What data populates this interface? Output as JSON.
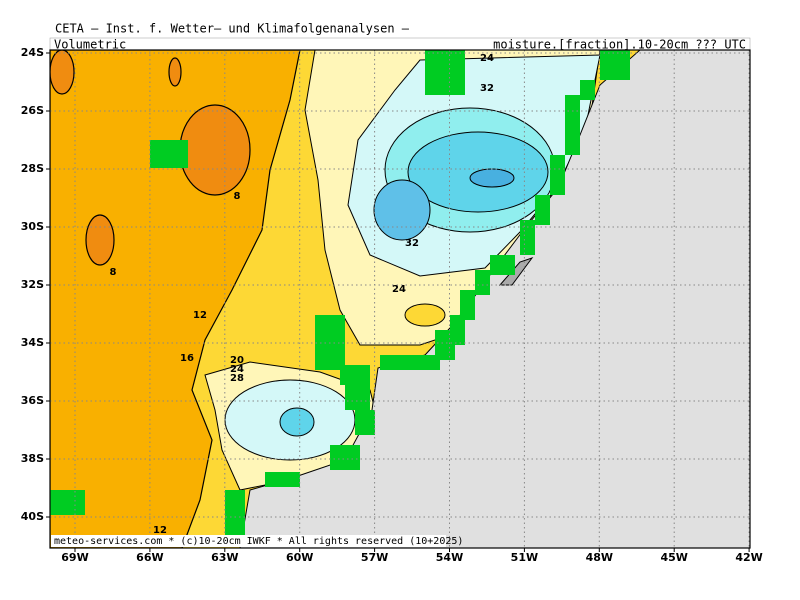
{
  "header": {
    "title": "CETA — Inst. f. Wetter— und Klimafolgenanalysen —",
    "left_label": "Volumetric",
    "right_label": "moisture.[fraction].10-20cm ??? UTC"
  },
  "map": {
    "lat_labels": [
      "24S",
      "26S",
      "28S",
      "30S",
      "32S",
      "34S",
      "36S",
      "38S",
      "40S"
    ],
    "lon_labels": [
      "69W",
      "66W",
      "63W",
      "60W",
      "57W",
      "54W",
      "51W",
      "48W",
      "45W",
      "42W"
    ],
    "contour_labels": [
      "24",
      "32",
      "8",
      "8",
      "12",
      "16",
      "20",
      "24",
      "28",
      "32",
      "24",
      "12"
    ],
    "footer": "meteo-services.com * (c)10-20cm IWKF * All rights reserved (10+2025)"
  }
}
